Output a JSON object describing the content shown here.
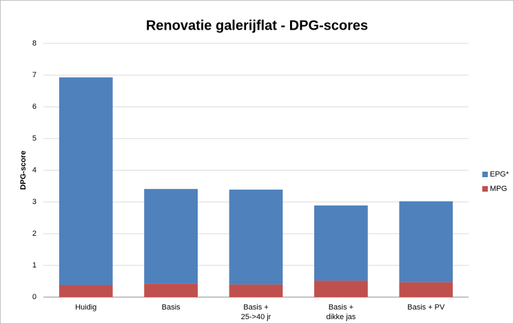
{
  "chart_data": {
    "type": "stacked_bar",
    "title": "Renovatie galerijflat - DPG-scores",
    "y_label": "DPG-score",
    "categories": [
      "Huidig",
      "Basis",
      "Basis +\n25->40 jr",
      "Basis +\ndikke jas",
      "Basis + PV"
    ],
    "series": [
      {
        "name": "MPG",
        "color": "#c0504d",
        "values": [
          0.38,
          0.43,
          0.4,
          0.52,
          0.47
        ]
      },
      {
        "name": "EPG*",
        "color": "#4f81bd",
        "values": [
          6.55,
          2.98,
          2.99,
          2.37,
          2.55
        ]
      }
    ],
    "ylim": [
      0,
      8
    ],
    "yticks": [
      0,
      1,
      2,
      3,
      4,
      5,
      6,
      7,
      8
    ],
    "grid": true
  }
}
